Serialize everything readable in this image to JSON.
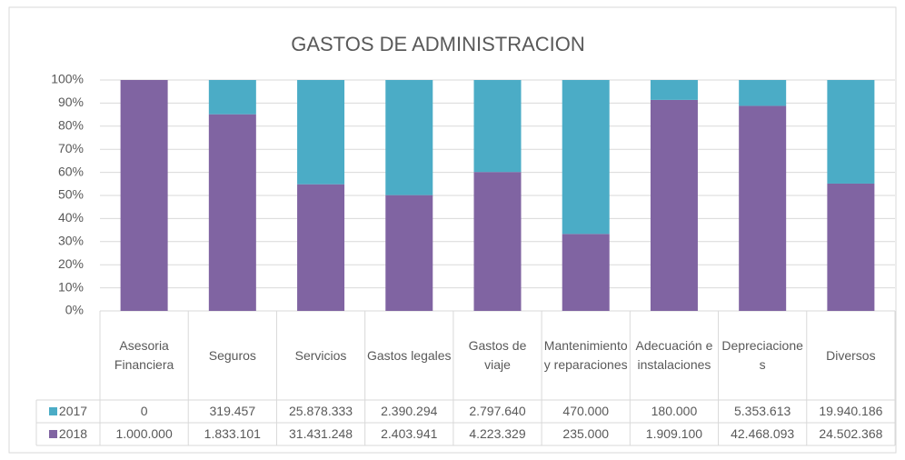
{
  "chart_data": {
    "type": "bar",
    "stacked": "percent",
    "title": "GASTOS DE ADMINISTRACION",
    "categories": [
      "Asesoria Financiera",
      "Seguros",
      "Servicios",
      "Gastos legales",
      "Gastos de viaje",
      "Mantenimiento y reparaciones",
      "Adecuación e instalaciones",
      "Depreciaciones",
      "Diversos"
    ],
    "series": [
      {
        "name": "2018",
        "color": "#8064a2",
        "values": [
          1000000,
          1833101,
          31431248,
          2403941,
          4223329,
          235000,
          1909100,
          42468093,
          24502368
        ],
        "value_labels": [
          "1.000.000",
          "1.833.101",
          "31.431.248",
          "2.403.941",
          "4.223.329",
          "235.000",
          "1.909.100",
          "42.468.093",
          "24.502.368"
        ]
      },
      {
        "name": "2017",
        "color": "#4bacc6",
        "values": [
          0,
          319457,
          25878333,
          2390294,
          2797640,
          470000,
          180000,
          5353613,
          19940186
        ],
        "value_labels": [
          "0",
          "319.457",
          "25.878.333",
          "2.390.294",
          "2.797.640",
          "470.000",
          "180.000",
          "5.353.613",
          "19.940.186"
        ]
      }
    ],
    "ylim": [
      0,
      100
    ],
    "yticks": [
      {
        "value": 0,
        "label": "0%"
      },
      {
        "value": 10,
        "label": "10%"
      },
      {
        "value": 20,
        "label": "20%"
      },
      {
        "value": 30,
        "label": "30%"
      },
      {
        "value": 40,
        "label": "40%"
      },
      {
        "value": 50,
        "label": "50%"
      },
      {
        "value": 60,
        "label": "60%"
      },
      {
        "value": 70,
        "label": "70%"
      },
      {
        "value": 80,
        "label": "80%"
      },
      {
        "value": 90,
        "label": "90%"
      },
      {
        "value": 100,
        "label": "100%"
      }
    ],
    "grid": true,
    "legend": "table"
  }
}
